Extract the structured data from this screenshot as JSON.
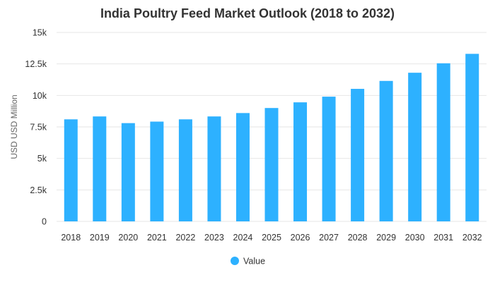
{
  "chart_data": {
    "type": "bar",
    "title": "India Poultry Feed Market Outlook (2018 to 2032)",
    "xlabel": "",
    "ylabel": "USD USD Million",
    "categories": [
      "2018",
      "2019",
      "2020",
      "2021",
      "2022",
      "2023",
      "2024",
      "2025",
      "2026",
      "2027",
      "2028",
      "2029",
      "2030",
      "2031",
      "2032"
    ],
    "series": [
      {
        "name": "Value",
        "values": [
          8100,
          8330,
          7800,
          7920,
          8100,
          8330,
          8600,
          9000,
          9450,
          9900,
          10520,
          11150,
          11800,
          12550,
          13300
        ]
      }
    ],
    "ylim": [
      0,
      15000
    ],
    "yticks": [
      0,
      2500,
      5000,
      7500,
      10000,
      12500,
      15000
    ],
    "ytick_labels": [
      "0",
      "2.5k",
      "5k",
      "7.5k",
      "10k",
      "12.5k",
      "15k"
    ],
    "grid": true,
    "legend_position": "bottom-center",
    "colors": {
      "bar": "#2db1ff",
      "grid": "#e6e6e6",
      "text": "#333333"
    }
  }
}
